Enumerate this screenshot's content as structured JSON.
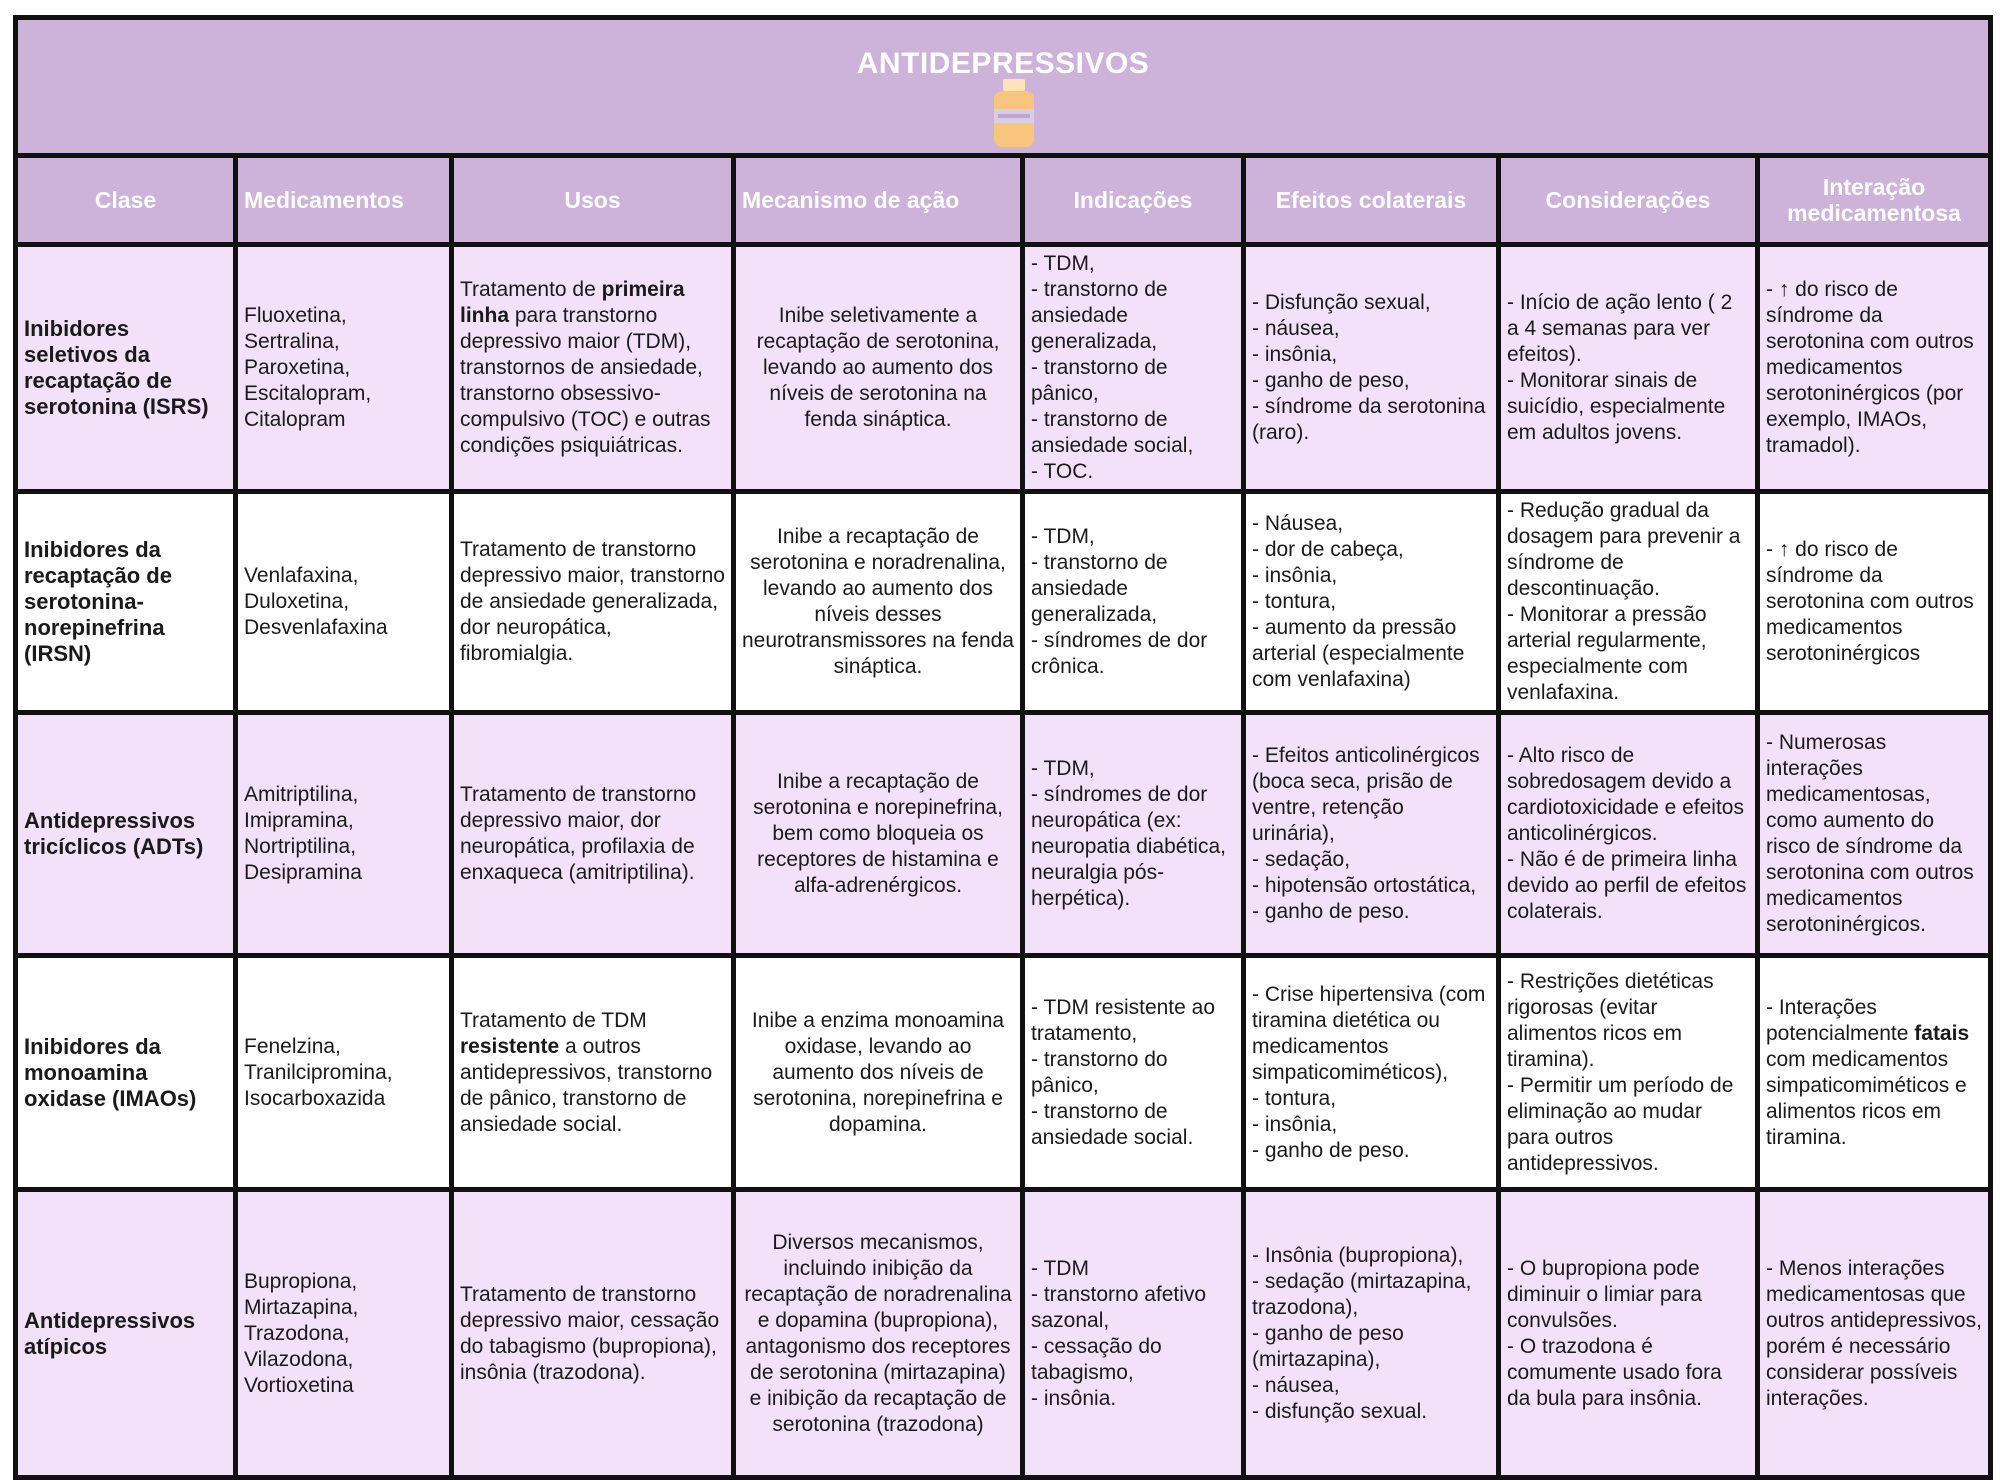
{
  "title": "ANTIDEPRESSIVOS",
  "title_icon": "medicine-bottle-icon",
  "colors": {
    "header": "#cdb3d9",
    "row_pink": "#f3e1fa",
    "row_white": "#ffffff",
    "border": "#111111"
  },
  "headers": [
    "Clase",
    "Medicamentos",
    "Usos",
    "Mecanismo de ação",
    "Indicações",
    "Efeitos colaterais",
    "Considerações",
    "Interação medicamentosa"
  ],
  "rows": [
    {
      "cells": [
        [
          {
            "t": "Inibidores seletivos da recaptação de serotonina (ISRS)"
          }
        ],
        [
          {
            "t": "Fluoxetina,\nSertralina,\nParoxetina,\nEscitalopram,\nCitalopram"
          }
        ],
        [
          {
            "t": "Tratamento de "
          },
          {
            "t": "primeira linha",
            "b": true
          },
          {
            "t": " para transtorno depressivo maior (TDM), transtornos de ansiedade, transtorno obsessivo-compulsivo (TOC) e outras condições psiquiátricas."
          }
        ],
        [
          {
            "t": "Inibe seletivamente a recaptação de serotonina, levando ao aumento dos níveis de serotonina na fenda sináptica."
          }
        ],
        [
          {
            "t": "- TDM,\n- transtorno de ansiedade generalizada,\n- transtorno de pânico,\n- transtorno de ansiedade social,\n- TOC."
          }
        ],
        [
          {
            "t": "- Disfunção sexual,\n- náusea,\n- insônia,\n- ganho de peso,\n- síndrome da serotonina (raro)."
          }
        ],
        [
          {
            "t": "- Início de ação lento ( 2 a 4 semanas para ver efeitos).\n- Monitorar sinais de suicídio, especialmente em adultos jovens."
          }
        ],
        [
          {
            "t": "- ↑ do risco de síndrome da serotonina com outros medicamentos serotoninérgicos (por exemplo, IMAOs, tramadol)."
          }
        ]
      ]
    },
    {
      "cells": [
        [
          {
            "t": "Inibidores da recaptação de serotonina-norepinefrina (IRSN)"
          }
        ],
        [
          {
            "t": "Venlafaxina,\nDuloxetina,\nDesvenlafaxina"
          }
        ],
        [
          {
            "t": "Tratamento de transtorno depressivo maior, transtorno de ansiedade generalizada, dor neuropática, fibromialgia."
          }
        ],
        [
          {
            "t": "Inibe a recaptação de serotonina e noradrenalina, levando ao aumento dos níveis desses neurotransmissores na fenda sináptica."
          }
        ],
        [
          {
            "t": "- TDM,\n- transtorno de ansiedade generalizada,\n- síndromes de dor crônica."
          }
        ],
        [
          {
            "t": "- Náusea,\n- dor de cabeça,\n- insônia,\n- tontura,\n- aumento da pressão arterial (especialmente com venlafaxina)"
          }
        ],
        [
          {
            "t": "- Redução gradual da dosagem para prevenir a síndrome de descontinuação.\n- Monitorar a pressão arterial regularmente, especialmente com venlafaxina."
          }
        ],
        [
          {
            "t": "- ↑ do risco de síndrome da serotonina com outros medicamentos serotoninérgicos"
          }
        ]
      ]
    },
    {
      "cells": [
        [
          {
            "t": "Antidepressivos tricíclicos (ADTs)"
          }
        ],
        [
          {
            "t": "Amitriptilina,\nImipramina,\nNortriptilina,\nDesipramina"
          }
        ],
        [
          {
            "t": "Tratamento de transtorno depressivo maior, dor neuropática, profilaxia de enxaqueca (amitriptilina)."
          }
        ],
        [
          {
            "t": "Inibe a recaptação de serotonina e norepinefrina, bem como bloqueia os receptores de histamina e alfa-adrenérgicos."
          }
        ],
        [
          {
            "t": "- TDM,\n- síndromes de dor neuropática (ex: neuropatia diabética, neuralgia pós-herpética)."
          }
        ],
        [
          {
            "t": "- Efeitos anticolinérgicos (boca seca, prisão de ventre, retenção urinária),\n- sedação,\n- hipotensão ortostática,\n- ganho de peso."
          }
        ],
        [
          {
            "t": "- Alto risco de sobredosagem devido a cardiotoxicidade e efeitos anticolinérgicos.\n- Não é de primeira linha devido ao perfil de efeitos colaterais."
          }
        ],
        [
          {
            "t": "- Numerosas interações medicamentosas, como aumento do risco de síndrome da serotonina com outros medicamentos serotoninérgicos."
          }
        ]
      ]
    },
    {
      "cells": [
        [
          {
            "t": "Inibidores da monoamina oxidase (IMAOs)"
          }
        ],
        [
          {
            "t": "Fenelzina,\nTranilcipromina,\nIsocarboxazida"
          }
        ],
        [
          {
            "t": "Tratamento de TDM "
          },
          {
            "t": "resistente",
            "b": true
          },
          {
            "t": " a outros antidepressivos, transtorno de pânico, transtorno de ansiedade social."
          }
        ],
        [
          {
            "t": "Inibe a enzima monoamina oxidase, levando ao aumento dos níveis de serotonina, norepinefrina e dopamina."
          }
        ],
        [
          {
            "t": "- TDM resistente ao tratamento,\n- transtorno do pânico,\n- transtorno de ansiedade social."
          }
        ],
        [
          {
            "t": "- Crise hipertensiva (com tiramina dietética ou medicamentos simpaticomiméticos),\n- tontura,\n- insônia,\n- ganho de peso."
          }
        ],
        [
          {
            "t": "- Restrições dietéticas rigorosas (evitar alimentos ricos em tiramina).\n- Permitir um período de eliminação ao mudar para outros antidepressivos."
          }
        ],
        [
          {
            "t": "- Interações potencialmente "
          },
          {
            "t": "fatais",
            "b": true
          },
          {
            "t": " com medicamentos simpaticomiméticos e alimentos ricos em tiramina."
          }
        ]
      ]
    },
    {
      "cells": [
        [
          {
            "t": "Antidepressivos atípicos"
          }
        ],
        [
          {
            "t": "Bupropiona,\nMirtazapina,\nTrazodona,\nVilazodona,\nVortioxetina"
          }
        ],
        [
          {
            "t": "Tratamento de transtorno depressivo maior, cessação do tabagismo (bupropiona), insônia (trazodona)."
          }
        ],
        [
          {
            "t": "Diversos mecanismos, incluindo inibição da recaptação de noradrenalina e dopamina (bupropiona), antagonismo dos receptores de serotonina (mirtazapina) e inibição da recaptação de serotonina (trazodona)"
          }
        ],
        [
          {
            "t": "- TDM\n- transtorno afetivo sazonal,\n- cessação do tabagismo,\n- insônia."
          }
        ],
        [
          {
            "t": "- Insônia (bupropiona),\n- sedação (mirtazapina, trazodona),\n- ganho de peso (mirtazapina),\n- náusea,\n- disfunção sexual."
          }
        ],
        [
          {
            "t": "- O bupropiona pode diminuir o limiar para convulsões.\n- O trazodona é comumente usado fora da bula para insônia."
          }
        ],
        [
          {
            "t": "- Menos interações medicamentosas que outros antidepressivos, porém é necessário considerar possíveis interações."
          }
        ]
      ]
    }
  ]
}
